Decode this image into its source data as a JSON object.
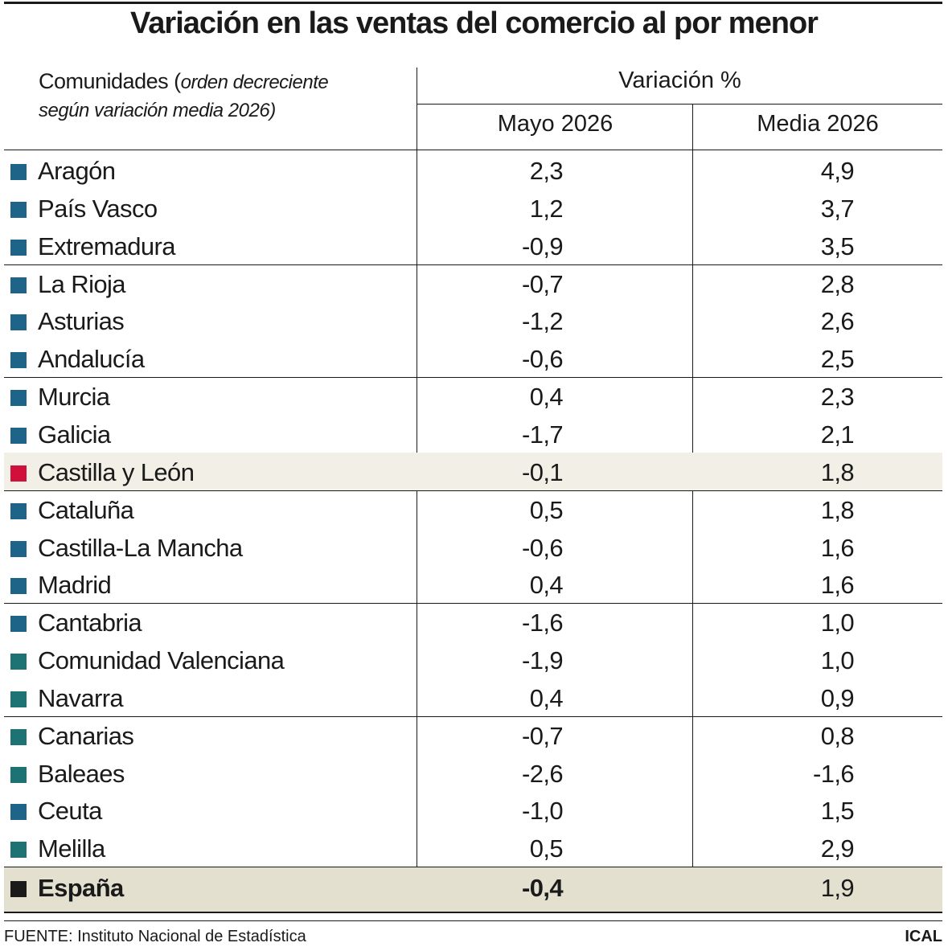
{
  "title": "Variación en las ventas del comercio al por menor",
  "header": {
    "col1": "Comunidades (",
    "col1_note": [
      "orden decreciente",
      "según variación media 2026)"
    ],
    "group": "Variación %",
    "col2": "Mayo 2026",
    "col3": "Media 2026"
  },
  "rows": [
    {
      "name": "Aragón",
      "mayo": "2,3",
      "media": "4,9",
      "color": "#1e6488"
    },
    {
      "name": "País Vasco",
      "mayo": "1,2",
      "media": "3,7",
      "color": "#1e6488"
    },
    {
      "name": "Extremadura",
      "mayo": "-0,9",
      "media": "3,5",
      "color": "#1e6488"
    },
    {
      "name": "La Rioja",
      "mayo": "-0,7",
      "media": "2,8",
      "color": "#1e6488"
    },
    {
      "name": "Asturias",
      "mayo": "-1,2",
      "media": "2,6",
      "color": "#1e6488"
    },
    {
      "name": "Andalucía",
      "mayo": "-0,6",
      "media": "2,5",
      "color": "#1e6488"
    },
    {
      "name": "Murcia",
      "mayo": "0,4",
      "media": "2,3",
      "color": "#1e6488"
    },
    {
      "name": "Galicia",
      "mayo": "-1,7",
      "media": "2,1",
      "color": "#1e6488"
    },
    {
      "name": "Castilla y León",
      "mayo": "-0,1",
      "media": "1,8",
      "color": "#d0103a",
      "highlight": true
    },
    {
      "name": "Cataluña",
      "mayo": "0,5",
      "media": "1,8",
      "color": "#1e6488"
    },
    {
      "name": "Castilla-La Mancha",
      "mayo": "-0,6",
      "media": "1,6",
      "color": "#1e6488"
    },
    {
      "name": "Madrid",
      "mayo": "0,4",
      "media": "1,6",
      "color": "#1e6488"
    },
    {
      "name": "Cantabria",
      "mayo": "-1,6",
      "media": "1,0",
      "color": "#1e6488"
    },
    {
      "name": "Comunidad Valenciana",
      "mayo": "-1,9",
      "media": "1,0",
      "color": "#1d7373"
    },
    {
      "name": "Navarra",
      "mayo": "0,4",
      "media": "0,9",
      "color": "#1d7373"
    },
    {
      "name": "Canarias",
      "mayo": "-0,7",
      "media": "0,8",
      "color": "#1d7373"
    },
    {
      "name": "Baleaes",
      "mayo": "-2,6",
      "media": "-1,6",
      "color": "#1d7373"
    },
    {
      "name": "Ceuta",
      "mayo": "-1,0",
      "media": "1,5",
      "color": "#1e6488"
    },
    {
      "name": "Melilla",
      "mayo": "0,5",
      "media": "2,9",
      "color": "#1d7373"
    }
  ],
  "total": {
    "name": "España",
    "mayo": "-0,4",
    "media": "1,9",
    "color": "#1a1a1a"
  },
  "footer": {
    "source": "FUENTE: Instituto Nacional de Estadística",
    "brand": "ICAL"
  }
}
